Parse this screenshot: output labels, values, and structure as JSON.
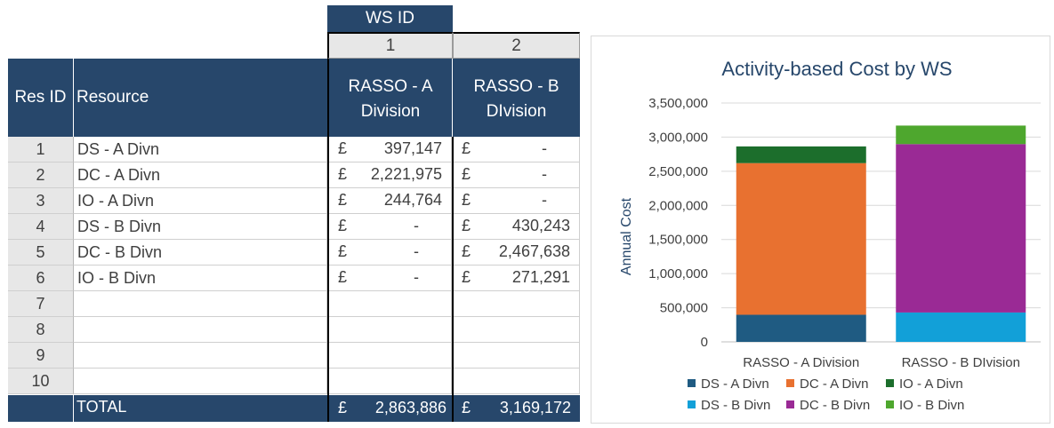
{
  "table": {
    "ws_id_header": "WS ID",
    "ws_ids": [
      "1",
      "2"
    ],
    "res_id_header": "Res ID",
    "resource_header": "Resource",
    "ws_names": [
      [
        "RASSO - A",
        "Division"
      ],
      [
        "RASSO - B",
        "DIvision"
      ]
    ],
    "currency_symbol": "£",
    "rows": [
      {
        "id": "1",
        "resource": "DS - A Divn",
        "values": [
          "397,147",
          "-"
        ]
      },
      {
        "id": "2",
        "resource": "DC - A Divn",
        "values": [
          "2,221,975",
          "-"
        ]
      },
      {
        "id": "3",
        "resource": "IO - A Divn",
        "values": [
          "244,764",
          "-"
        ]
      },
      {
        "id": "4",
        "resource": "DS - B Divn",
        "values": [
          "-",
          "430,243"
        ]
      },
      {
        "id": "5",
        "resource": "DC - B Divn",
        "values": [
          "-",
          "2,467,638"
        ]
      },
      {
        "id": "6",
        "resource": "IO - B Divn",
        "values": [
          "-",
          "271,291"
        ]
      },
      {
        "id": "7",
        "resource": "",
        "values": [
          "",
          ""
        ]
      },
      {
        "id": "8",
        "resource": "",
        "values": [
          "",
          ""
        ]
      },
      {
        "id": "9",
        "resource": "",
        "values": [
          "",
          ""
        ]
      },
      {
        "id": "10",
        "resource": "",
        "values": [
          "",
          ""
        ]
      }
    ],
    "total_label": "TOTAL",
    "totals": [
      "2,863,886",
      "3,169,172"
    ]
  },
  "chart_data": {
    "type": "bar",
    "stacked": true,
    "title": "Activity-based Cost by WS",
    "xlabel": "",
    "ylabel": "Annual Cost",
    "categories": [
      "RASSO - A Division",
      "RASSO - B DIvision"
    ],
    "ylim": [
      0,
      3500000
    ],
    "yticks": [
      0,
      500000,
      1000000,
      1500000,
      2000000,
      2500000,
      3000000,
      3500000
    ],
    "ytick_labels": [
      "0",
      "500,000",
      "1,000,000",
      "1,500,000",
      "2,000,000",
      "2,500,000",
      "3,000,000",
      "3,500,000"
    ],
    "grid": true,
    "legend_position": "bottom",
    "series": [
      {
        "name": "DS - A Divn",
        "color": "#1f5b82",
        "values": [
          397147,
          0
        ]
      },
      {
        "name": "DC - A Divn",
        "color": "#e87130",
        "values": [
          2221975,
          0
        ]
      },
      {
        "name": "IO - A Divn",
        "color": "#1c6e2c",
        "values": [
          244764,
          0
        ]
      },
      {
        "name": "DS - B Divn",
        "color": "#12a0d8",
        "values": [
          0,
          430243
        ]
      },
      {
        "name": "DC - B Divn",
        "color": "#9a2a95",
        "values": [
          0,
          2467638
        ]
      },
      {
        "name": "IO - B Divn",
        "color": "#4ea72e",
        "values": [
          0,
          271291
        ]
      }
    ]
  }
}
